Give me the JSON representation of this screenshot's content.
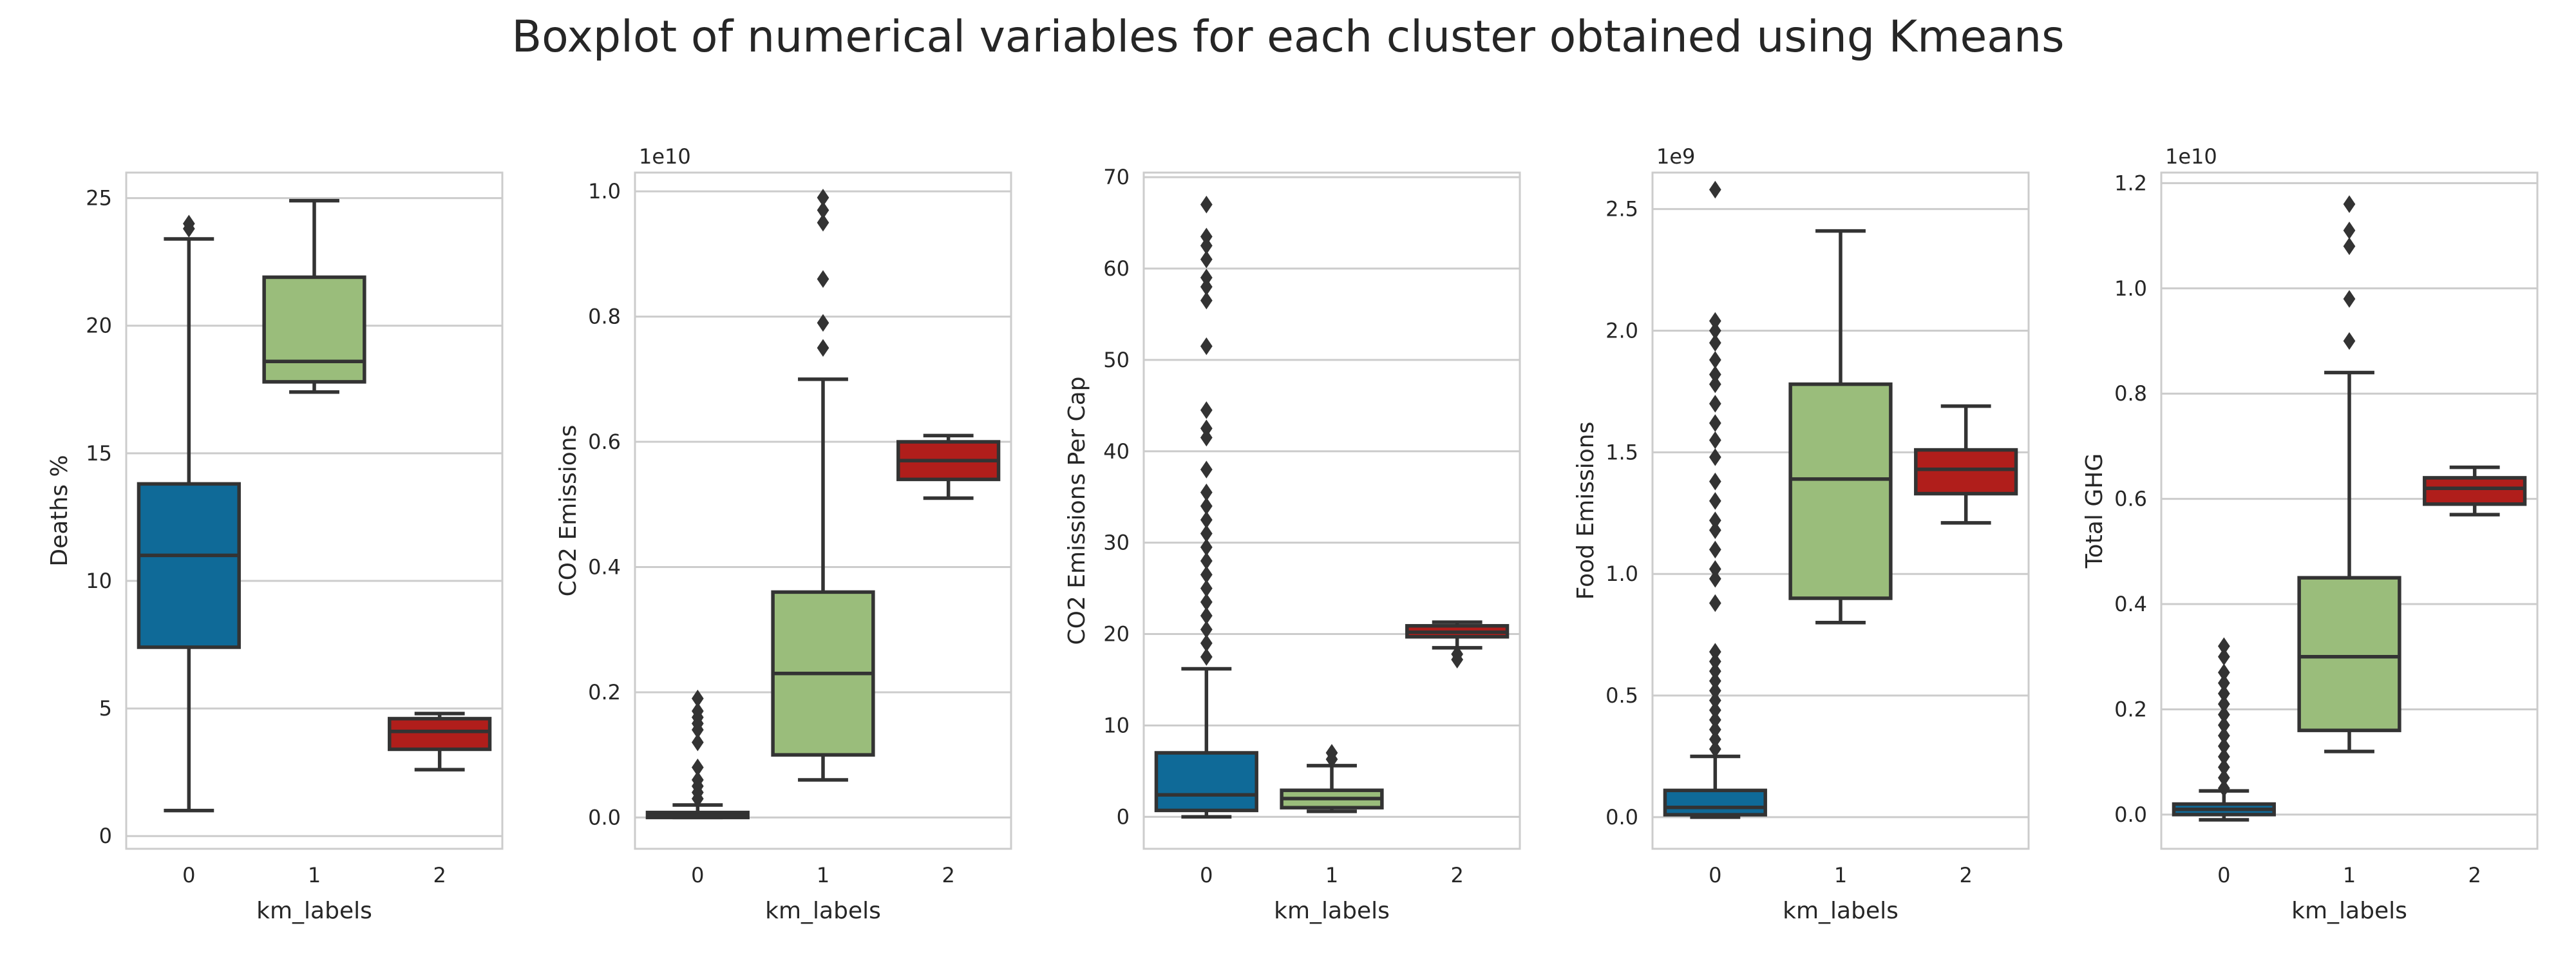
{
  "suptitle": "Boxplot of numerical variables for each cluster obtained using Kmeans",
  "colors": {
    "cluster_0": "#0f6a98",
    "cluster_1": "#9abd7b",
    "cluster_2": "#b01e1b",
    "axes_frame": "#cccccc",
    "grid": "#cccccc",
    "box_lines": "#333333",
    "text": "#262626"
  },
  "chart_data": [
    {
      "type": "box",
      "xlabel": "km_labels",
      "ylabel": "Deaths %",
      "offset_text": "",
      "categories": [
        "0",
        "1",
        "2"
      ],
      "ylim": [
        -0.5,
        26
      ],
      "yticks": [
        0,
        5,
        10,
        15,
        20,
        25
      ],
      "ytick_labels": [
        "0",
        "5",
        "10",
        "15",
        "20",
        "25"
      ],
      "grid": true,
      "boxes": [
        {
          "q1": 7.4,
          "median": 11.0,
          "q3": 13.8,
          "whislo": 1.0,
          "whishi": 23.4,
          "fliers": [
            23.8,
            24.0
          ]
        },
        {
          "q1": 17.8,
          "median": 18.6,
          "q3": 21.9,
          "whislo": 17.4,
          "whishi": 24.9,
          "fliers": []
        },
        {
          "q1": 3.4,
          "median": 4.1,
          "q3": 4.6,
          "whislo": 2.6,
          "whishi": 4.8,
          "fliers": []
        }
      ]
    },
    {
      "type": "box",
      "xlabel": "km_labels",
      "ylabel": "CO2 Emissions",
      "offset_text": "1e10",
      "categories": [
        "0",
        "1",
        "2"
      ],
      "ylim": [
        -0.05,
        1.03
      ],
      "yticks": [
        0.0,
        0.2,
        0.4,
        0.6,
        0.8,
        1.0
      ],
      "ytick_labels": [
        "0.0",
        "0.2",
        "0.4",
        "0.6",
        "0.8",
        "1.0"
      ],
      "grid": true,
      "boxes": [
        {
          "q1": 0.0,
          "median": 0.003,
          "q3": 0.008,
          "whislo": 0.0,
          "whishi": 0.02,
          "fliers": [
            0.03,
            0.04,
            0.05,
            0.06,
            0.08,
            0.12,
            0.14,
            0.15,
            0.16,
            0.17,
            0.19
          ]
        },
        {
          "q1": 0.1,
          "median": 0.23,
          "q3": 0.36,
          "whislo": 0.06,
          "whishi": 0.7,
          "fliers": [
            0.75,
            0.79,
            0.86,
            0.95,
            0.97,
            0.99
          ]
        },
        {
          "q1": 0.54,
          "median": 0.57,
          "q3": 0.6,
          "whislo": 0.51,
          "whishi": 0.61,
          "fliers": []
        }
      ]
    },
    {
      "type": "box",
      "xlabel": "km_labels",
      "ylabel": "CO2 Emissions Per Cap",
      "offset_text": "",
      "categories": [
        "0",
        "1",
        "2"
      ],
      "ylim": [
        -3.5,
        70.5
      ],
      "yticks": [
        0,
        10,
        20,
        30,
        40,
        50,
        60,
        70
      ],
      "ytick_labels": [
        "0",
        "10",
        "20",
        "30",
        "40",
        "50",
        "60",
        "70"
      ],
      "grid": true,
      "boxes": [
        {
          "q1": 0.7,
          "median": 2.4,
          "q3": 7.0,
          "whislo": 0.0,
          "whishi": 16.2,
          "fliers": [
            17.5,
            19,
            20.5,
            22,
            23.5,
            25,
            26.5,
            28,
            29.5,
            31,
            32.5,
            34,
            35.5,
            38,
            41.5,
            42.5,
            44.5,
            51.5,
            56.5,
            58,
            59,
            61,
            62.5,
            63.5,
            67
          ]
        },
        {
          "q1": 1.0,
          "median": 2.0,
          "q3": 2.9,
          "whislo": 0.6,
          "whishi": 5.6,
          "fliers": [
            6.3,
            7.0
          ]
        },
        {
          "q1": 19.7,
          "median": 20.2,
          "q3": 20.9,
          "whislo": 18.5,
          "whishi": 21.3,
          "fliers": [
            17.2,
            17.8
          ]
        }
      ]
    },
    {
      "type": "box",
      "xlabel": "km_labels",
      "ylabel": "Food Emissions",
      "offset_text": "1e9",
      "categories": [
        "0",
        "1",
        "2"
      ],
      "ylim": [
        -0.13,
        2.65
      ],
      "yticks": [
        0.0,
        0.5,
        1.0,
        1.5,
        2.0,
        2.5
      ],
      "ytick_labels": [
        "0.0",
        "0.5",
        "1.0",
        "1.5",
        "2.0",
        "2.5"
      ],
      "grid": true,
      "boxes": [
        {
          "q1": 0.01,
          "median": 0.04,
          "q3": 0.11,
          "whislo": 0.0,
          "whishi": 0.25,
          "fliers": [
            0.28,
            0.32,
            0.36,
            0.4,
            0.44,
            0.48,
            0.52,
            0.56,
            0.6,
            0.64,
            0.68,
            0.88,
            0.98,
            1.02,
            1.1,
            1.18,
            1.22,
            1.3,
            1.38,
            1.48,
            1.55,
            1.62,
            1.7,
            1.78,
            1.82,
            1.88,
            1.95,
            2.0,
            2.04,
            2.58
          ]
        },
        {
          "q1": 0.9,
          "median": 1.39,
          "q3": 1.78,
          "whislo": 0.8,
          "whishi": 2.41,
          "fliers": []
        },
        {
          "q1": 1.33,
          "median": 1.43,
          "q3": 1.51,
          "whislo": 1.21,
          "whishi": 1.69,
          "fliers": []
        }
      ]
    },
    {
      "type": "box",
      "xlabel": "km_labels",
      "ylabel": "Total GHG",
      "offset_text": "1e10",
      "categories": [
        "0",
        "1",
        "2"
      ],
      "ylim": [
        -0.065,
        1.22
      ],
      "yticks": [
        0.0,
        0.2,
        0.4,
        0.6,
        0.8,
        1.0,
        1.2
      ],
      "ytick_labels": [
        "0.0",
        "0.2",
        "0.4",
        "0.6",
        "0.8",
        "1.0",
        "1.2"
      ],
      "grid": true,
      "boxes": [
        {
          "q1": 0.0,
          "median": 0.01,
          "q3": 0.02,
          "whislo": -0.01,
          "whishi": 0.045,
          "fliers": [
            0.05,
            0.07,
            0.09,
            0.11,
            0.13,
            0.15,
            0.17,
            0.19,
            0.21,
            0.23,
            0.25,
            0.27,
            0.3,
            0.32
          ]
        },
        {
          "q1": 0.16,
          "median": 0.3,
          "q3": 0.45,
          "whislo": 0.12,
          "whishi": 0.84,
          "fliers": [
            0.9,
            0.98,
            1.08,
            1.11,
            1.16
          ]
        },
        {
          "q1": 0.59,
          "median": 0.62,
          "q3": 0.64,
          "whislo": 0.57,
          "whishi": 0.66,
          "fliers": []
        }
      ]
    }
  ]
}
